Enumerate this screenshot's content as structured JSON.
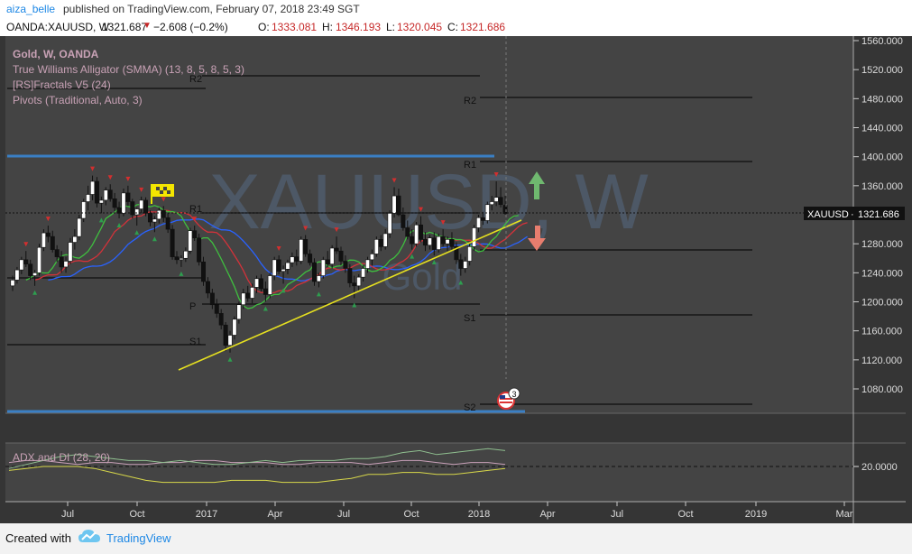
{
  "header": {
    "author": "aiza_belle",
    "published_text": "published on TradingView.com, February 07, 2018 23:49 SGT",
    "symbol_line": "OANDA:XAUUSD, W",
    "last_price": "1321.687",
    "change": "−2.608 (−0.2%)",
    "open_label": "O:",
    "open": "1333.081",
    "high_label": "H:",
    "high": "1346.193",
    "low_label": "L:",
    "low": "1320.045",
    "close_label": "C:",
    "close": "1321.686"
  },
  "legend": {
    "title": "Gold, W, OANDA",
    "indicators": [
      "True Williams Alligator (SMMA) (13, 8, 5, 8, 5, 3)",
      "[RS]Fractals V5 (24)",
      "Pivots (Traditional, Auto, 3)"
    ]
  },
  "watermark": {
    "symbol": "XAUUSD, W",
    "name": "Gold"
  },
  "price_tag": {
    "symbol": "XAUUSD",
    "value": "1321.686"
  },
  "pivot_labels": [
    "R2",
    "R1",
    "P",
    "S1",
    "S2",
    "R2",
    "R1",
    "S1",
    "S2"
  ],
  "event_badge": "3",
  "footer": {
    "created_with": "Created with",
    "brand": "TradingView"
  },
  "colors": {
    "chart_bg": "#444444",
    "axis_bg": "#353535",
    "alligator_jaw": "#2962ff",
    "alligator_teeth": "#d3323a",
    "alligator_lips": "#3fbf3f",
    "trendline": "#e6e020",
    "channel": "#3a7fc4",
    "arrow_up": "#6fb86f",
    "arrow_down": "#e77d6e",
    "adx": "#c8a0b8",
    "di_plus": "#8fbf8f",
    "di_minus": "#d8d84a"
  },
  "chart_data": [
    {
      "type": "candlestick",
      "title": "Gold, W, OANDA",
      "y_ticks": [
        1560,
        1520,
        1480,
        1440,
        1400,
        1360,
        1320,
        1280,
        1240,
        1200,
        1160,
        1120,
        1080
      ],
      "y_tick_labels": [
        "1560.000",
        "1520.000",
        "1480.000",
        "1440.000",
        "1400.000",
        "1360.000",
        "1320.000",
        "1280.000",
        "1240.000",
        "1200.000",
        "1160.000",
        "1120.000",
        "1080.000"
      ],
      "ylim": [
        1055,
        1575
      ],
      "x_tick_labels": [
        "Jul",
        "Oct",
        "2017",
        "Apr",
        "Jul",
        "Oct",
        "2018",
        "Apr",
        "Jul",
        "Oct",
        "2019",
        "Mar"
      ],
      "grid": false,
      "ohlc": [
        [
          1222,
          1236,
          1215,
          1230
        ],
        [
          1230,
          1248,
          1225,
          1244
        ],
        [
          1244,
          1262,
          1238,
          1258
        ],
        [
          1258,
          1270,
          1248,
          1252
        ],
        [
          1252,
          1258,
          1230,
          1236
        ],
        [
          1236,
          1244,
          1222,
          1240
        ],
        [
          1240,
          1280,
          1236,
          1275
        ],
        [
          1275,
          1300,
          1270,
          1295
        ],
        [
          1295,
          1305,
          1282,
          1290
        ],
        [
          1290,
          1298,
          1268,
          1272
        ],
        [
          1272,
          1278,
          1255,
          1262
        ],
        [
          1262,
          1270,
          1240,
          1248
        ],
        [
          1248,
          1262,
          1240,
          1256
        ],
        [
          1256,
          1288,
          1252,
          1282
        ],
        [
          1282,
          1300,
          1272,
          1290
        ],
        [
          1290,
          1320,
          1285,
          1315
        ],
        [
          1315,
          1342,
          1310,
          1338
        ],
        [
          1338,
          1360,
          1326,
          1348
        ],
        [
          1348,
          1374,
          1340,
          1366
        ],
        [
          1366,
          1372,
          1330,
          1336
        ],
        [
          1336,
          1345,
          1322,
          1340
        ],
        [
          1340,
          1358,
          1333,
          1354
        ],
        [
          1354,
          1362,
          1338,
          1342
        ],
        [
          1342,
          1350,
          1325,
          1330
        ],
        [
          1330,
          1338,
          1315,
          1322
        ],
        [
          1322,
          1356,
          1318,
          1350
        ],
        [
          1350,
          1360,
          1332,
          1338
        ],
        [
          1338,
          1342,
          1315,
          1320
        ],
        [
          1320,
          1330,
          1305,
          1328
        ],
        [
          1328,
          1345,
          1322,
          1340
        ],
        [
          1340,
          1344,
          1318,
          1322
        ],
        [
          1322,
          1326,
          1304,
          1310
        ],
        [
          1310,
          1318,
          1296,
          1314
        ],
        [
          1314,
          1330,
          1308,
          1326
        ],
        [
          1326,
          1332,
          1310,
          1316
        ],
        [
          1316,
          1322,
          1295,
          1300
        ],
        [
          1300,
          1306,
          1258,
          1262
        ],
        [
          1262,
          1270,
          1252,
          1258
        ],
        [
          1258,
          1264,
          1248,
          1260
        ],
        [
          1260,
          1275,
          1255,
          1270
        ],
        [
          1270,
          1302,
          1266,
          1298
        ],
        [
          1298,
          1305,
          1284,
          1288
        ],
        [
          1288,
          1294,
          1250,
          1255
        ],
        [
          1255,
          1262,
          1222,
          1228
        ],
        [
          1228,
          1234,
          1205,
          1212
        ],
        [
          1212,
          1218,
          1190,
          1196
        ],
        [
          1196,
          1204,
          1178,
          1184
        ],
        [
          1184,
          1190,
          1162,
          1168
        ],
        [
          1168,
          1172,
          1132,
          1140
        ],
        [
          1140,
          1160,
          1130,
          1154
        ],
        [
          1154,
          1180,
          1148,
          1176
        ],
        [
          1176,
          1200,
          1170,
          1196
        ],
        [
          1196,
          1218,
          1190,
          1212
        ],
        [
          1212,
          1222,
          1200,
          1205
        ],
        [
          1205,
          1225,
          1198,
          1220
        ],
        [
          1220,
          1236,
          1212,
          1232
        ],
        [
          1232,
          1238,
          1214,
          1218
        ],
        [
          1218,
          1228,
          1200,
          1210
        ],
        [
          1210,
          1240,
          1205,
          1236
        ],
        [
          1236,
          1262,
          1230,
          1258
        ],
        [
          1258,
          1264,
          1238,
          1242
        ],
        [
          1242,
          1250,
          1225,
          1245
        ],
        [
          1245,
          1258,
          1238,
          1254
        ],
        [
          1254,
          1268,
          1248,
          1262
        ],
        [
          1262,
          1272,
          1250,
          1256
        ],
        [
          1256,
          1290,
          1252,
          1286
        ],
        [
          1286,
          1292,
          1262,
          1266
        ],
        [
          1266,
          1272,
          1250,
          1254
        ],
        [
          1254,
          1260,
          1222,
          1228
        ],
        [
          1228,
          1240,
          1220,
          1236
        ],
        [
          1236,
          1262,
          1232,
          1258
        ],
        [
          1258,
          1270,
          1248,
          1252
        ],
        [
          1252,
          1278,
          1246,
          1274
        ],
        [
          1274,
          1290,
          1266,
          1270
        ],
        [
          1270,
          1276,
          1250,
          1256
        ],
        [
          1256,
          1264,
          1240,
          1246
        ],
        [
          1246,
          1252,
          1220,
          1226
        ],
        [
          1226,
          1236,
          1205,
          1222
        ],
        [
          1222,
          1238,
          1215,
          1234
        ],
        [
          1234,
          1250,
          1228,
          1246
        ],
        [
          1246,
          1262,
          1240,
          1258
        ],
        [
          1258,
          1272,
          1250,
          1266
        ],
        [
          1266,
          1290,
          1262,
          1286
        ],
        [
          1286,
          1292,
          1270,
          1276
        ],
        [
          1276,
          1300,
          1272,
          1294
        ],
        [
          1294,
          1326,
          1288,
          1322
        ],
        [
          1322,
          1358,
          1316,
          1346
        ],
        [
          1346,
          1356,
          1318,
          1320
        ],
        [
          1320,
          1330,
          1298,
          1302
        ],
        [
          1302,
          1312,
          1286,
          1290
        ],
        [
          1290,
          1300,
          1272,
          1280
        ],
        [
          1280,
          1310,
          1276,
          1306
        ],
        [
          1306,
          1318,
          1282,
          1286
        ],
        [
          1286,
          1296,
          1270,
          1278
        ],
        [
          1278,
          1292,
          1272,
          1288
        ],
        [
          1288,
          1296,
          1264,
          1272
        ],
        [
          1272,
          1294,
          1268,
          1290
        ],
        [
          1290,
          1300,
          1276,
          1280
        ],
        [
          1280,
          1290,
          1270,
          1286
        ],
        [
          1286,
          1296,
          1272,
          1276
        ],
        [
          1276,
          1282,
          1252,
          1258
        ],
        [
          1258,
          1266,
          1236,
          1246
        ],
        [
          1246,
          1262,
          1240,
          1256
        ],
        [
          1256,
          1280,
          1250,
          1276
        ],
        [
          1276,
          1306,
          1270,
          1302
        ],
        [
          1302,
          1320,
          1296,
          1316
        ],
        [
          1316,
          1324,
          1306,
          1312
        ],
        [
          1312,
          1338,
          1308,
          1334
        ],
        [
          1334,
          1346,
          1326,
          1338
        ],
        [
          1338,
          1366,
          1332,
          1344
        ],
        [
          1344,
          1358,
          1330,
          1334
        ],
        [
          1333.081,
          1346.193,
          1320.045,
          1321.686
        ]
      ],
      "pivots": {
        "R2_old": 1510,
        "R1_old": 1330,
        "P_old": 1196,
        "S1_old": 1230,
        "S2_old": 1138,
        "R2": 1479,
        "R1": 1393,
        "S1": 1181,
        "S2": 1062
      },
      "channel": {
        "upper": 1400,
        "lower": 1055
      },
      "last_price": 1321.686
    },
    {
      "type": "line",
      "title": "ADX and DI (28, 20)",
      "threshold": 20,
      "y_tick_labels": [
        "20.0000"
      ],
      "series": [
        {
          "name": "ADX",
          "values": [
            22,
            23,
            23,
            22,
            21,
            22,
            22,
            21,
            21,
            22,
            22,
            23,
            23,
            22,
            22,
            22,
            21,
            21,
            22,
            22,
            22,
            21,
            22,
            23,
            23,
            22,
            21,
            22,
            22,
            21
          ]
        },
        {
          "name": "+DI",
          "values": [
            19,
            21,
            23,
            25,
            26,
            25,
            24,
            23,
            23,
            22,
            23,
            22,
            21,
            21,
            22,
            23,
            22,
            23,
            23,
            23,
            24,
            24,
            25,
            27,
            28,
            26,
            27,
            28,
            29,
            28
          ]
        },
        {
          "name": "-DI",
          "values": [
            18,
            19,
            20,
            20,
            20,
            19,
            17,
            15,
            13,
            12,
            12,
            12,
            12,
            13,
            13,
            13,
            12,
            12,
            12,
            13,
            14,
            16,
            16,
            17,
            17,
            16,
            16,
            17,
            18,
            19
          ]
        }
      ]
    }
  ]
}
